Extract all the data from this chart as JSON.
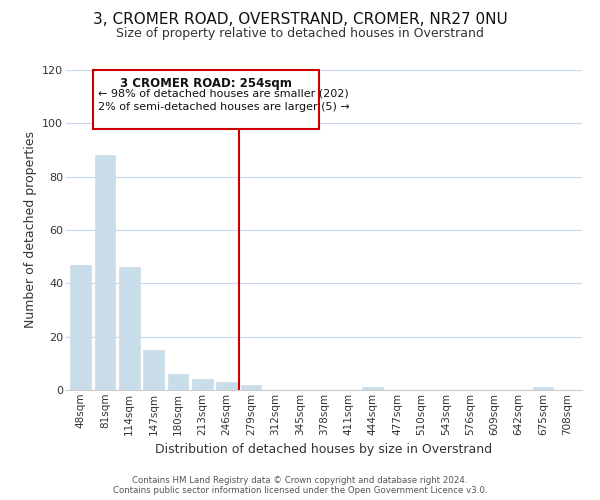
{
  "title": "3, CROMER ROAD, OVERSTRAND, CROMER, NR27 0NU",
  "subtitle": "Size of property relative to detached houses in Overstrand",
  "xlabel": "Distribution of detached houses by size in Overstrand",
  "ylabel": "Number of detached properties",
  "bar_labels": [
    "48sqm",
    "81sqm",
    "114sqm",
    "147sqm",
    "180sqm",
    "213sqm",
    "246sqm",
    "279sqm",
    "312sqm",
    "345sqm",
    "378sqm",
    "411sqm",
    "444sqm",
    "477sqm",
    "510sqm",
    "543sqm",
    "576sqm",
    "609sqm",
    "642sqm",
    "675sqm",
    "708sqm"
  ],
  "bar_values": [
    47,
    88,
    46,
    15,
    6,
    4,
    3,
    2,
    0,
    0,
    0,
    0,
    1,
    0,
    0,
    0,
    0,
    0,
    0,
    1,
    0
  ],
  "bar_color": "#c8dcea",
  "bar_edge_color": "#c8dcea",
  "vline_x": 6.5,
  "vline_color": "#cc0000",
  "annotation_title": "3 CROMER ROAD: 254sqm",
  "annotation_line1": "← 98% of detached houses are smaller (202)",
  "annotation_line2": "2% of semi-detached houses are larger (5) →",
  "annotation_box_color": "#ffffff",
  "annotation_box_edge_color": "#cc0000",
  "ylim": [
    0,
    120
  ],
  "yticks": [
    0,
    20,
    40,
    60,
    80,
    100,
    120
  ],
  "footer_line1": "Contains HM Land Registry data © Crown copyright and database right 2024.",
  "footer_line2": "Contains public sector information licensed under the Open Government Licence v3.0.",
  "bg_color": "#ffffff",
  "grid_color": "#c8d8e8",
  "title_fontsize": 11,
  "subtitle_fontsize": 9,
  "label_fontsize": 9,
  "tick_fontsize": 7.5,
  "ytick_fontsize": 8
}
